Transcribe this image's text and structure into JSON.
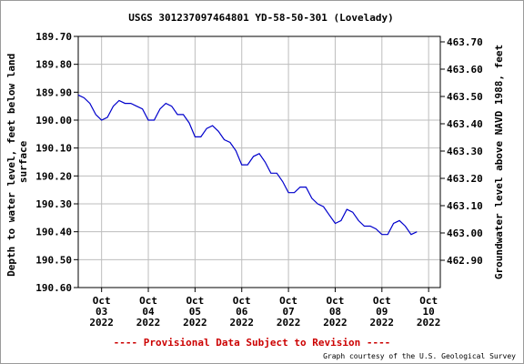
{
  "chart_data": {
    "type": "line",
    "title": "USGS 301237097464801 YD-58-50-301 (Lovelady)",
    "ylabel_left": "Depth to water level, feet below land surface",
    "ylabel_left_lines": [
      "Depth to water level, feet below land",
      "surface"
    ],
    "ylabel_right": "Groundwater level above NAVD 1988, feet",
    "ylim_left": [
      189.7,
      190.6
    ],
    "ylim_right": [
      462.8,
      463.72
    ],
    "left_ticks": [
      "189.70",
      "189.80",
      "189.90",
      "190.00",
      "190.10",
      "190.20",
      "190.30",
      "190.40",
      "190.50",
      "190.60"
    ],
    "right_ticks": [
      "463.70",
      "463.60",
      "463.50",
      "463.40",
      "463.30",
      "463.20",
      "463.10",
      "463.00",
      "462.90"
    ],
    "xlim": [
      "2022-10-02 12:00",
      "2022-10-10 06:00"
    ],
    "x_ticks": [
      {
        "month": "Oct",
        "day": "03",
        "year": "2022"
      },
      {
        "month": "Oct",
        "day": "04",
        "year": "2022"
      },
      {
        "month": "Oct",
        "day": "05",
        "year": "2022"
      },
      {
        "month": "Oct",
        "day": "06",
        "year": "2022"
      },
      {
        "month": "Oct",
        "day": "07",
        "year": "2022"
      },
      {
        "month": "Oct",
        "day": "08",
        "year": "2022"
      },
      {
        "month": "Oct",
        "day": "09",
        "year": "2022"
      },
      {
        "month": "Oct",
        "day": "10",
        "year": "2022"
      }
    ],
    "grid": true,
    "series": [
      {
        "color": "#0000cc",
        "points": [
          [
            "2022-10-02 12:00",
            189.91
          ],
          [
            "2022-10-02 15:00",
            189.92
          ],
          [
            "2022-10-02 18:00",
            189.94
          ],
          [
            "2022-10-02 21:00",
            189.98
          ],
          [
            "2022-10-03 00:00",
            190.0
          ],
          [
            "2022-10-03 03:00",
            189.99
          ],
          [
            "2022-10-03 06:00",
            189.95
          ],
          [
            "2022-10-03 09:00",
            189.93
          ],
          [
            "2022-10-03 12:00",
            189.94
          ],
          [
            "2022-10-03 15:00",
            189.94
          ],
          [
            "2022-10-03 18:00",
            189.95
          ],
          [
            "2022-10-03 21:00",
            189.96
          ],
          [
            "2022-10-04 00:00",
            190.0
          ],
          [
            "2022-10-04 03:00",
            190.0
          ],
          [
            "2022-10-04 06:00",
            189.96
          ],
          [
            "2022-10-04 09:00",
            189.94
          ],
          [
            "2022-10-04 12:00",
            189.95
          ],
          [
            "2022-10-04 15:00",
            189.98
          ],
          [
            "2022-10-04 18:00",
            189.98
          ],
          [
            "2022-10-04 21:00",
            190.01
          ],
          [
            "2022-10-05 00:00",
            190.06
          ],
          [
            "2022-10-05 03:00",
            190.06
          ],
          [
            "2022-10-05 06:00",
            190.03
          ],
          [
            "2022-10-05 09:00",
            190.02
          ],
          [
            "2022-10-05 12:00",
            190.04
          ],
          [
            "2022-10-05 15:00",
            190.07
          ],
          [
            "2022-10-05 18:00",
            190.08
          ],
          [
            "2022-10-05 21:00",
            190.11
          ],
          [
            "2022-10-06 00:00",
            190.16
          ],
          [
            "2022-10-06 03:00",
            190.16
          ],
          [
            "2022-10-06 06:00",
            190.13
          ],
          [
            "2022-10-06 09:00",
            190.12
          ],
          [
            "2022-10-06 12:00",
            190.15
          ],
          [
            "2022-10-06 15:00",
            190.19
          ],
          [
            "2022-10-06 18:00",
            190.19
          ],
          [
            "2022-10-06 21:00",
            190.22
          ],
          [
            "2022-10-07 00:00",
            190.26
          ],
          [
            "2022-10-07 03:00",
            190.26
          ],
          [
            "2022-10-07 06:00",
            190.24
          ],
          [
            "2022-10-07 09:00",
            190.24
          ],
          [
            "2022-10-07 12:00",
            190.28
          ],
          [
            "2022-10-07 15:00",
            190.3
          ],
          [
            "2022-10-07 18:00",
            190.31
          ],
          [
            "2022-10-07 21:00",
            190.34
          ],
          [
            "2022-10-08 00:00",
            190.37
          ],
          [
            "2022-10-08 03:00",
            190.36
          ],
          [
            "2022-10-08 06:00",
            190.32
          ],
          [
            "2022-10-08 09:00",
            190.33
          ],
          [
            "2022-10-08 12:00",
            190.36
          ],
          [
            "2022-10-08 15:00",
            190.38
          ],
          [
            "2022-10-08 18:00",
            190.38
          ],
          [
            "2022-10-08 21:00",
            190.39
          ],
          [
            "2022-10-09 00:00",
            190.41
          ],
          [
            "2022-10-09 03:00",
            190.41
          ],
          [
            "2022-10-09 06:00",
            190.37
          ],
          [
            "2022-10-09 09:00",
            190.36
          ],
          [
            "2022-10-09 12:00",
            190.38
          ],
          [
            "2022-10-09 15:00",
            190.41
          ],
          [
            "2022-10-09 18:00",
            190.4
          ]
        ]
      }
    ]
  },
  "footer": {
    "provisional": "---- Provisional Data Subject to Revision ----",
    "provisional_color": "#cc0000",
    "credit": "Graph courtesy of the U.S. Geological Survey"
  }
}
